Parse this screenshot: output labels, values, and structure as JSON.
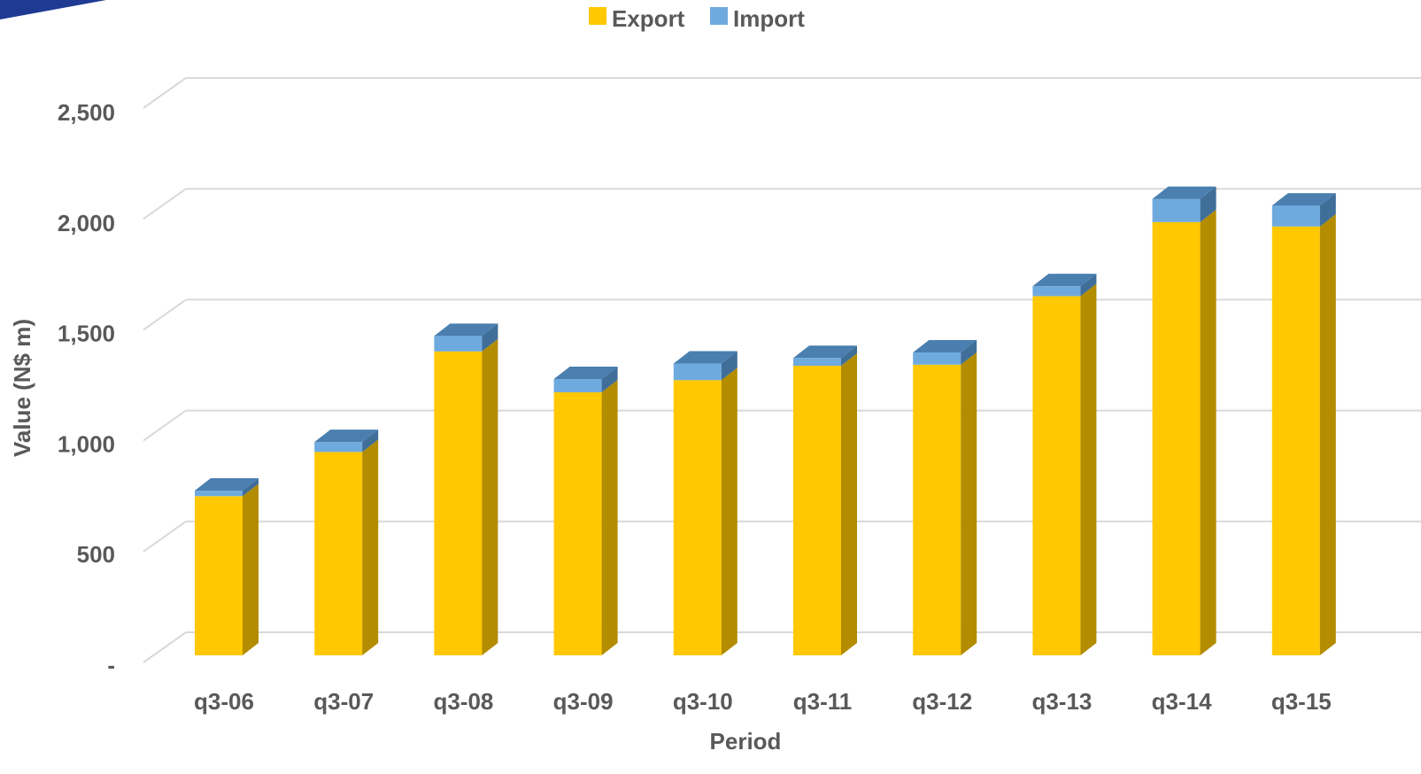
{
  "chart_data": {
    "type": "bar",
    "stacked": true,
    "three_d": true,
    "categories": [
      "q3-06",
      "q3-07",
      "q3-08",
      "q3-09",
      "q3-10",
      "q3-11",
      "q3-12",
      "q3-13",
      "q3-14",
      "q3-15"
    ],
    "series": [
      {
        "name": "Export",
        "values": [
          720,
          920,
          1375,
          1190,
          1245,
          1310,
          1315,
          1625,
          1960,
          1940
        ],
        "color": "#FFC800",
        "side_color": "#B38C00"
      },
      {
        "name": "Import",
        "values": [
          25,
          45,
          70,
          60,
          75,
          35,
          55,
          45,
          105,
          95
        ],
        "color": "#6FAADF",
        "top_color": "#4A7FAF",
        "side_color": "#3F6E99"
      }
    ],
    "title": "",
    "xlabel": "Period",
    "ylabel": "Value (N$ m)",
    "ylim": [
      0,
      2500
    ],
    "yticks": [
      {
        "value": 0,
        "label": "-"
      },
      {
        "value": 500,
        "label": "500"
      },
      {
        "value": 1000,
        "label": "1,000"
      },
      {
        "value": 1500,
        "label": "1,500"
      },
      {
        "value": 2000,
        "label": "2,000"
      },
      {
        "value": 2500,
        "label": "2,500"
      }
    ],
    "grid": true,
    "legend_position": "top-center",
    "header_accent_color": "#1F3A93"
  }
}
